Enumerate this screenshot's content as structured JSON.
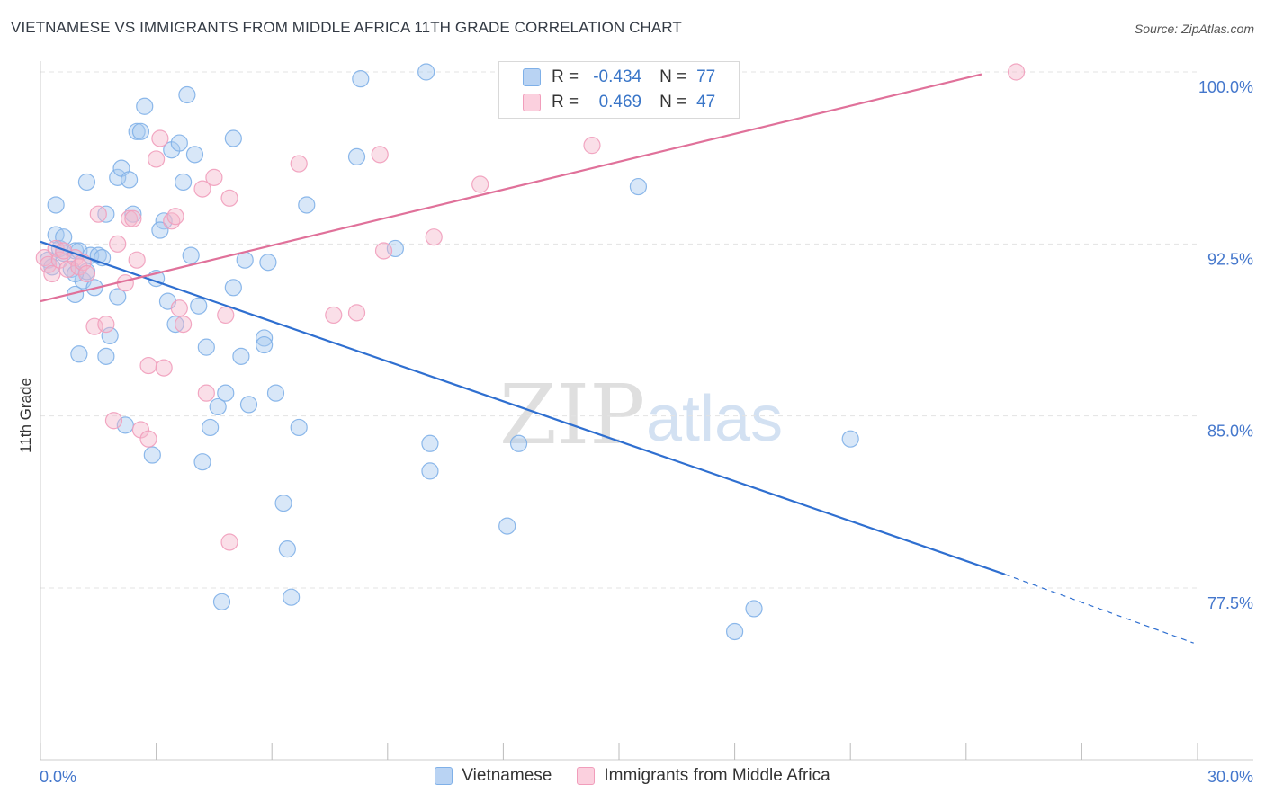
{
  "header": {
    "title": "VIETNAMESE VS IMMIGRANTS FROM MIDDLE AFRICA 11TH GRADE CORRELATION CHART",
    "source": "Source: ZipAtlas.com"
  },
  "watermark": {
    "zip": "ZIP",
    "atlas": "atlas"
  },
  "legend": {
    "r_label": "R =",
    "n_label": "N =",
    "rows": [
      {
        "r": "-0.434",
        "n": "77",
        "color": "#7fb0e8"
      },
      {
        "r": "0.469",
        "n": "47",
        "color": "#f19dbb"
      }
    ]
  },
  "colors": {
    "blue_fill": "#a8c9f0",
    "blue_line": "#2f6fd0",
    "pink_fill": "#f5b8cc",
    "pink_line": "#e0719a",
    "axis_text": "#4477cc",
    "grid": "#e3e3e3"
  },
  "chart_data": {
    "type": "scatter",
    "title": "VIETNAMESE VS IMMIGRANTS FROM MIDDLE AFRICA 11TH GRADE CORRELATION CHART",
    "ylabel": "11th Grade",
    "xlim": [
      0,
      30
    ],
    "ylim": [
      70,
      101.5
    ],
    "x_tick_labels": [
      "0.0%",
      "30.0%"
    ],
    "y_ticks": [
      77.5,
      85.0,
      92.5,
      100.0
    ],
    "y_tick_labels": [
      "77.5%",
      "85.0%",
      "92.5%",
      "100.0%"
    ],
    "grid": true,
    "legend_position": "top-center",
    "series": [
      {
        "name": "Vietnamese",
        "color": "#7fb0e8",
        "r": -0.434,
        "n": 77,
        "trend": {
          "x": [
            0,
            25.0
          ],
          "y": [
            92.6,
            78.1
          ],
          "dashed_to_x": 29.9,
          "dashed_to_y": 75.1
        },
        "points": [
          [
            0.2,
            91.8
          ],
          [
            0.3,
            91.5
          ],
          [
            0.4,
            92.9
          ],
          [
            0.5,
            92.3
          ],
          [
            0.6,
            92.1
          ],
          [
            0.8,
            91.4
          ],
          [
            0.9,
            92.2
          ],
          [
            1.0,
            92.2
          ],
          [
            1.1,
            90.9
          ],
          [
            1.2,
            91.3
          ],
          [
            1.3,
            92.0
          ],
          [
            1.4,
            90.6
          ],
          [
            1.5,
            92.0
          ],
          [
            0.4,
            94.2
          ],
          [
            0.6,
            92.8
          ],
          [
            0.9,
            90.3
          ],
          [
            1.0,
            87.7
          ],
          [
            1.2,
            95.2
          ],
          [
            1.7,
            93.8
          ],
          [
            1.8,
            88.5
          ],
          [
            1.7,
            87.6
          ],
          [
            2.0,
            90.2
          ],
          [
            2.0,
            95.4
          ],
          [
            2.1,
            95.8
          ],
          [
            2.3,
            95.3
          ],
          [
            2.5,
            97.4
          ],
          [
            2.6,
            97.4
          ],
          [
            2.7,
            98.5
          ],
          [
            2.2,
            84.6
          ],
          [
            2.9,
            83.3
          ],
          [
            3.2,
            93.5
          ],
          [
            3.3,
            90.0
          ],
          [
            3.4,
            96.6
          ],
          [
            3.5,
            89.0
          ],
          [
            3.6,
            96.9
          ],
          [
            3.7,
            95.2
          ],
          [
            3.8,
            99.0
          ],
          [
            3.9,
            92.0
          ],
          [
            4.1,
            89.8
          ],
          [
            4.3,
            88.0
          ],
          [
            4.4,
            84.5
          ],
          [
            4.6,
            85.4
          ],
          [
            4.8,
            86.0
          ],
          [
            4.7,
            76.9
          ],
          [
            5.0,
            90.6
          ],
          [
            5.0,
            97.1
          ],
          [
            5.2,
            87.6
          ],
          [
            5.3,
            91.8
          ],
          [
            5.4,
            85.5
          ],
          [
            5.8,
            88.4
          ],
          [
            5.8,
            88.1
          ],
          [
            5.9,
            91.7
          ],
          [
            6.1,
            86.0
          ],
          [
            6.3,
            81.2
          ],
          [
            6.4,
            79.2
          ],
          [
            6.5,
            77.1
          ],
          [
            6.7,
            84.5
          ],
          [
            6.9,
            94.2
          ],
          [
            8.2,
            96.3
          ],
          [
            8.3,
            99.7
          ],
          [
            9.2,
            92.3
          ],
          [
            10.0,
            100.0
          ],
          [
            10.1,
            83.8
          ],
          [
            10.1,
            82.6
          ],
          [
            12.1,
            80.2
          ],
          [
            12.4,
            83.8
          ],
          [
            15.5,
            95.0
          ],
          [
            18.5,
            76.6
          ],
          [
            18.0,
            75.6
          ],
          [
            21.0,
            84.0
          ],
          [
            0.9,
            91.2
          ],
          [
            3.1,
            93.1
          ],
          [
            4.0,
            96.4
          ],
          [
            2.4,
            93.8
          ],
          [
            1.6,
            91.9
          ],
          [
            3.0,
            91.0
          ],
          [
            4.2,
            83.0
          ]
        ]
      },
      {
        "name": "Immigrants from Middle Africa",
        "color": "#f19dbb",
        "r": 0.469,
        "n": 47,
        "trend": {
          "x": [
            0,
            24.4
          ],
          "y": [
            90.0,
            99.9
          ]
        },
        "points": [
          [
            0.1,
            91.9
          ],
          [
            0.2,
            91.6
          ],
          [
            0.3,
            91.2
          ],
          [
            0.4,
            92.3
          ],
          [
            0.5,
            91.8
          ],
          [
            0.6,
            92.2
          ],
          [
            0.7,
            91.4
          ],
          [
            0.9,
            91.9
          ],
          [
            1.0,
            91.5
          ],
          [
            1.1,
            91.7
          ],
          [
            1.2,
            91.2
          ],
          [
            1.4,
            88.9
          ],
          [
            1.5,
            93.8
          ],
          [
            1.7,
            89.0
          ],
          [
            1.9,
            84.8
          ],
          [
            2.0,
            92.5
          ],
          [
            2.2,
            90.8
          ],
          [
            2.3,
            93.6
          ],
          [
            2.4,
            93.6
          ],
          [
            2.5,
            91.8
          ],
          [
            2.6,
            84.4
          ],
          [
            2.8,
            84.0
          ],
          [
            2.8,
            87.2
          ],
          [
            3.0,
            96.2
          ],
          [
            3.1,
            97.1
          ],
          [
            3.2,
            87.1
          ],
          [
            3.4,
            93.5
          ],
          [
            3.5,
            93.7
          ],
          [
            3.6,
            89.7
          ],
          [
            3.7,
            89.0
          ],
          [
            4.2,
            94.9
          ],
          [
            4.3,
            86.0
          ],
          [
            4.5,
            95.4
          ],
          [
            4.8,
            89.4
          ],
          [
            4.9,
            94.5
          ],
          [
            4.9,
            79.5
          ],
          [
            6.7,
            96.0
          ],
          [
            7.6,
            89.4
          ],
          [
            8.2,
            89.5
          ],
          [
            8.8,
            96.4
          ],
          [
            8.9,
            92.2
          ],
          [
            10.2,
            92.8
          ],
          [
            11.4,
            95.1
          ],
          [
            12.1,
            100.0
          ],
          [
            12.3,
            100.0
          ],
          [
            14.3,
            96.8
          ],
          [
            25.3,
            100.0
          ]
        ]
      }
    ]
  },
  "bottom_legend": [
    "Vietnamese",
    "Immigrants from Middle Africa"
  ]
}
